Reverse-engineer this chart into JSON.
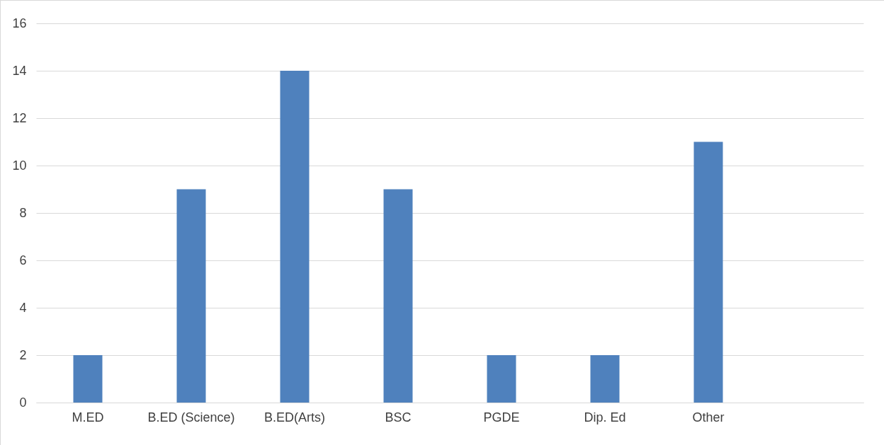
{
  "chart_data": {
    "type": "bar",
    "categories": [
      "M.ED",
      "B.ED (Science)",
      "B.ED(Arts)",
      "BSC",
      "PGDE",
      "Dip. Ed",
      "Other",
      null
    ],
    "values": [
      2,
      9,
      14,
      9,
      2,
      2,
      11,
      null
    ],
    "color": "#4f81bd",
    "ylim": [
      0,
      16
    ],
    "yticks": [
      0,
      2,
      4,
      6,
      8,
      10,
      12,
      14,
      16
    ],
    "grid": "y"
  }
}
